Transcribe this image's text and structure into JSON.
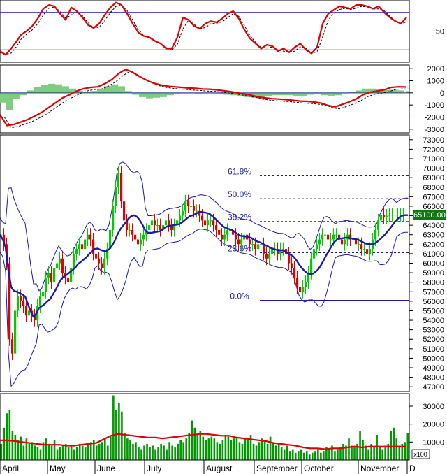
{
  "chart_data": [
    {
      "type": "line",
      "panel": "stochastic",
      "ylim": [
        0,
        100
      ],
      "y_tick_labels": [
        "50"
      ],
      "reference_levels": [
        20,
        80
      ],
      "series": [
        {
          "color": "#e00000",
          "x": [
            0,
            8,
            16,
            24,
            30,
            38,
            46,
            54,
            62,
            70,
            78,
            86,
            94,
            102,
            110,
            118,
            126,
            134,
            142,
            150,
            158,
            166,
            174,
            182,
            190,
            198,
            206,
            214,
            222,
            230,
            238,
            246,
            254,
            262,
            270,
            278,
            286,
            294,
            302,
            310,
            318,
            326,
            334,
            342,
            350,
            358,
            366,
            374,
            382,
            390,
            398,
            406,
            414,
            422,
            430,
            438,
            446,
            454,
            462,
            470,
            478,
            486,
            494,
            502,
            510,
            518,
            526,
            534,
            542,
            550,
            558,
            566,
            574,
            582
          ],
          "values": [
            18,
            12,
            22,
            34,
            44,
            50,
            58,
            70,
            86,
            92,
            90,
            78,
            68,
            88,
            82,
            72,
            60,
            55,
            62,
            76,
            88,
            96,
            92,
            78,
            62,
            48,
            42,
            40,
            34,
            30,
            22,
            22,
            40,
            72,
            68,
            58,
            54,
            62,
            66,
            64,
            70,
            78,
            82,
            70,
            52,
            38,
            30,
            22,
            28,
            26,
            18,
            22,
            16,
            24,
            30,
            20,
            14,
            24,
            62,
            78,
            84,
            90,
            88,
            86,
            92,
            92,
            90,
            86,
            90,
            80,
            72,
            66,
            62,
            72
          ]
        }
      ]
    },
    {
      "type": "bar",
      "panel": "macd",
      "ylim": [
        -3300,
        2300
      ],
      "y_tick_labels": [
        "2000",
        "1000",
        "0",
        "-1000",
        "-2000",
        "-3000"
      ],
      "series": [
        {
          "color": "#e00000",
          "x": [
            0,
            10,
            20,
            30,
            40,
            50,
            60,
            70,
            80,
            90,
            100,
            110,
            120,
            130,
            140,
            150,
            160,
            170,
            180,
            190,
            200,
            210,
            220,
            230,
            240,
            250,
            260,
            270,
            280,
            290,
            300,
            310,
            320,
            330,
            340,
            350,
            360,
            370,
            380,
            390,
            400,
            410,
            420,
            430,
            440,
            450,
            460,
            470,
            480,
            490,
            500,
            510,
            520,
            530,
            540,
            550,
            560,
            570,
            582
          ],
          "values": [
            -1800,
            -2700,
            -2600,
            -2400,
            -2200,
            -1900,
            -1600,
            -1200,
            -800,
            -400,
            -150,
            150,
            350,
            450,
            500,
            750,
            1100,
            1600,
            1950,
            1700,
            1350,
            1050,
            800,
            650,
            550,
            500,
            450,
            400,
            380,
            320,
            300,
            250,
            180,
            100,
            0,
            -100,
            -200,
            -350,
            -420,
            -480,
            -520,
            -560,
            -620,
            -680,
            -700,
            -760,
            -850,
            -1050,
            -1150,
            -950,
            -750,
            -500,
            -150,
            50,
            150,
            250,
            450,
            500,
            480
          ]
        },
        {
          "color": "#009900",
          "style": "histogram",
          "x": [
            0,
            10,
            20,
            30,
            40,
            50,
            60,
            70,
            80,
            90,
            100,
            110,
            120,
            130,
            140,
            150,
            160,
            170,
            180,
            190,
            200,
            210,
            220,
            230,
            240,
            250,
            260,
            270,
            280,
            290,
            300,
            310,
            320,
            330,
            340,
            350,
            360,
            370,
            380,
            390,
            400,
            410,
            420,
            430,
            440,
            450,
            460,
            470,
            480,
            490,
            500,
            510,
            520,
            530,
            540,
            550,
            560,
            570,
            582
          ],
          "values": [
            -800,
            -1400,
            -500,
            -200,
            200,
            450,
            650,
            750,
            700,
            550,
            350,
            150,
            50,
            150,
            350,
            550,
            700,
            550,
            150,
            -150,
            -350,
            -450,
            -400,
            -350,
            -200,
            -100,
            -50,
            -50,
            -100,
            -50,
            -50,
            -100,
            -150,
            -200,
            -300,
            -350,
            -400,
            -350,
            -250,
            -200,
            -200,
            -200,
            -250,
            -250,
            -150,
            -100,
            -200,
            -300,
            -200,
            -50,
            50,
            200,
            350,
            350,
            300,
            250,
            250,
            200,
            150
          ]
        }
      ]
    },
    {
      "type": "candlestick",
      "panel": "price",
      "ylim": [
        46500,
        73500
      ],
      "y_tick_labels": [
        "73000",
        "72000",
        "71000",
        "70000",
        "69000",
        "68000",
        "67000",
        "66000",
        "65000",
        "64000",
        "63000",
        "62000",
        "61000",
        "60000",
        "59000",
        "58000",
        "57000",
        "56000",
        "55000",
        "54000",
        "53000",
        "52000",
        "51000",
        "50000",
        "49000",
        "48000",
        "47000"
      ],
      "last_price_label": "65100.00",
      "fibonacci": [
        {
          "label": "61.8%",
          "value": 69200
        },
        {
          "label": "50.0%",
          "value": 66800
        },
        {
          "label": "38.2%",
          "value": 64400
        },
        {
          "label": "23.6%",
          "value": 61100
        },
        {
          "label": "0.0%",
          "value": 56100
        }
      ],
      "x": [
        0,
        4,
        8,
        12,
        16,
        20,
        24,
        28,
        32,
        36,
        40,
        44,
        48,
        52,
        56,
        60,
        64,
        68,
        72,
        76,
        80,
        84,
        88,
        92,
        96,
        100,
        104,
        108,
        112,
        116,
        120,
        124,
        128,
        132,
        136,
        140,
        144,
        148,
        152,
        156,
        160,
        164,
        168,
        172,
        176,
        180,
        184,
        188,
        192,
        196,
        200,
        204,
        208,
        212,
        216,
        220,
        224,
        228,
        232,
        236,
        240,
        244,
        248,
        252,
        256,
        260,
        264,
        268,
        272,
        276,
        280,
        284,
        288,
        292,
        296,
        300,
        304,
        308,
        312,
        316,
        320,
        324,
        328,
        332,
        336,
        340,
        344,
        348,
        352,
        356,
        360,
        364,
        368,
        372,
        376,
        380,
        384,
        388,
        392,
        396,
        400,
        404,
        408,
        412,
        416,
        420,
        424,
        428,
        432,
        436,
        440,
        444,
        448,
        452,
        456,
        460,
        464,
        468,
        472,
        476,
        480,
        484,
        488,
        492,
        496,
        500,
        504,
        508,
        512,
        516,
        520,
        524,
        528,
        532,
        536,
        540,
        544,
        548,
        552,
        556,
        560,
        564,
        568,
        572,
        576,
        580,
        584
      ],
      "close": [
        63000,
        62000,
        60000,
        52000,
        50500,
        55000,
        56500,
        56000,
        55500,
        54500,
        55000,
        54500,
        54000,
        55500,
        56500,
        57000,
        58500,
        59000,
        58000,
        59500,
        60000,
        60500,
        59000,
        58500,
        58000,
        59500,
        61000,
        61500,
        62000,
        61500,
        62500,
        63000,
        62500,
        61000,
        60500,
        60000,
        59500,
        60500,
        61500,
        63500,
        66000,
        68000,
        69500,
        66500,
        64500,
        63500,
        63500,
        63000,
        62500,
        62000,
        62500,
        63000,
        63500,
        64000,
        64500,
        64000,
        64000,
        63500,
        64000,
        64500,
        64000,
        63500,
        64000,
        64500,
        65000,
        65500,
        66500,
        66000,
        66000,
        65500,
        65500,
        65000,
        64500,
        64000,
        64500,
        64500,
        64000,
        63500,
        63000,
        62500,
        63000,
        63500,
        63500,
        63000,
        62500,
        62000,
        62500,
        63000,
        62500,
        62000,
        62000,
        61500,
        62000,
        62000,
        61000,
        60500,
        61000,
        61500,
        61500,
        61000,
        61500,
        61500,
        61000,
        60000,
        59500,
        58500,
        57500,
        57000,
        57500,
        58000,
        59000,
        60500,
        61500,
        62000,
        62500,
        63000,
        63000,
        62500,
        62500,
        63000,
        63000,
        62500,
        62000,
        62500,
        63000,
        62500,
        62500,
        62000,
        62000,
        61500,
        61500,
        61000,
        61500,
        62500,
        63500,
        64500,
        65100,
        64800,
        65000,
        65100,
        65100,
        65100,
        65100,
        65100,
        65100,
        65100,
        65100
      ]
    },
    {
      "type": "bar",
      "panel": "volume",
      "ylim": [
        0,
        37000
      ],
      "y_tick_labels": [
        "30000",
        "20000",
        "10000"
      ],
      "unit_label": "x100",
      "x_tick_labels": [
        "April",
        "May",
        "June",
        "July",
        "August",
        "September",
        "October",
        "November",
        "D"
      ],
      "series": [
        {
          "color": "#009900",
          "style": "bars",
          "values": [
            9000,
            18000,
            26000,
            28000,
            16000,
            14000,
            11000,
            13000,
            8000,
            12000,
            9000,
            10000,
            8000,
            7000,
            6000,
            10000,
            12000,
            9000,
            8000,
            11000,
            6000,
            7000,
            8000,
            9000,
            7000,
            8000,
            6000,
            7000,
            9000,
            8000,
            7000,
            9000,
            10000,
            11000,
            8000,
            9000,
            10000,
            12000,
            8000,
            13000,
            36000,
            28000,
            32000,
            27000,
            15000,
            12000,
            11000,
            9000,
            10000,
            7000,
            6000,
            8000,
            9000,
            7000,
            8000,
            6000,
            7000,
            9000,
            8000,
            6000,
            10000,
            8000,
            7000,
            9000,
            11000,
            10000,
            12000,
            15000,
            22000,
            18000,
            14000,
            16000,
            13000,
            11000,
            12000,
            13000,
            12000,
            10000,
            9000,
            11000,
            14000,
            13000,
            11000,
            12000,
            13000,
            10000,
            9000,
            12000,
            11000,
            14000,
            9000,
            8000,
            10000,
            12000,
            11000,
            9000,
            13000,
            10000,
            8000,
            9000,
            7000,
            6000,
            8000,
            5000,
            6000,
            4000,
            5000,
            6000,
            4000,
            5000,
            3000,
            4000,
            5000,
            6000,
            4000,
            5000,
            7000,
            6000,
            8000,
            5000,
            6000,
            7000,
            9000,
            8000,
            12000,
            8000,
            7000,
            9000,
            16000,
            11000,
            8000,
            6000,
            9000,
            7000,
            14000,
            7000,
            6000,
            8000,
            9000,
            16000,
            18000,
            12000,
            8000,
            9000,
            10000,
            15000
          ]
        },
        {
          "color": "#e00000",
          "style": "line",
          "values": [
            11000,
            11000,
            10500,
            10000,
            9500,
            9000,
            8500,
            8500,
            8500,
            8000,
            8000,
            8500,
            9000,
            9500,
            11500,
            13500,
            14500,
            14000,
            13500,
            13000,
            12500,
            12500,
            12000,
            12500,
            13000,
            13500,
            14000,
            14500,
            14500,
            14000,
            13500,
            13500,
            12500,
            12000,
            11500,
            11000,
            10500,
            9500,
            9000,
            8500,
            8000,
            7000,
            6500,
            6500,
            6000,
            6500,
            6500,
            7000,
            7500,
            7000,
            7500,
            7500,
            7500,
            7500,
            7500,
            7500
          ]
        }
      ]
    }
  ]
}
